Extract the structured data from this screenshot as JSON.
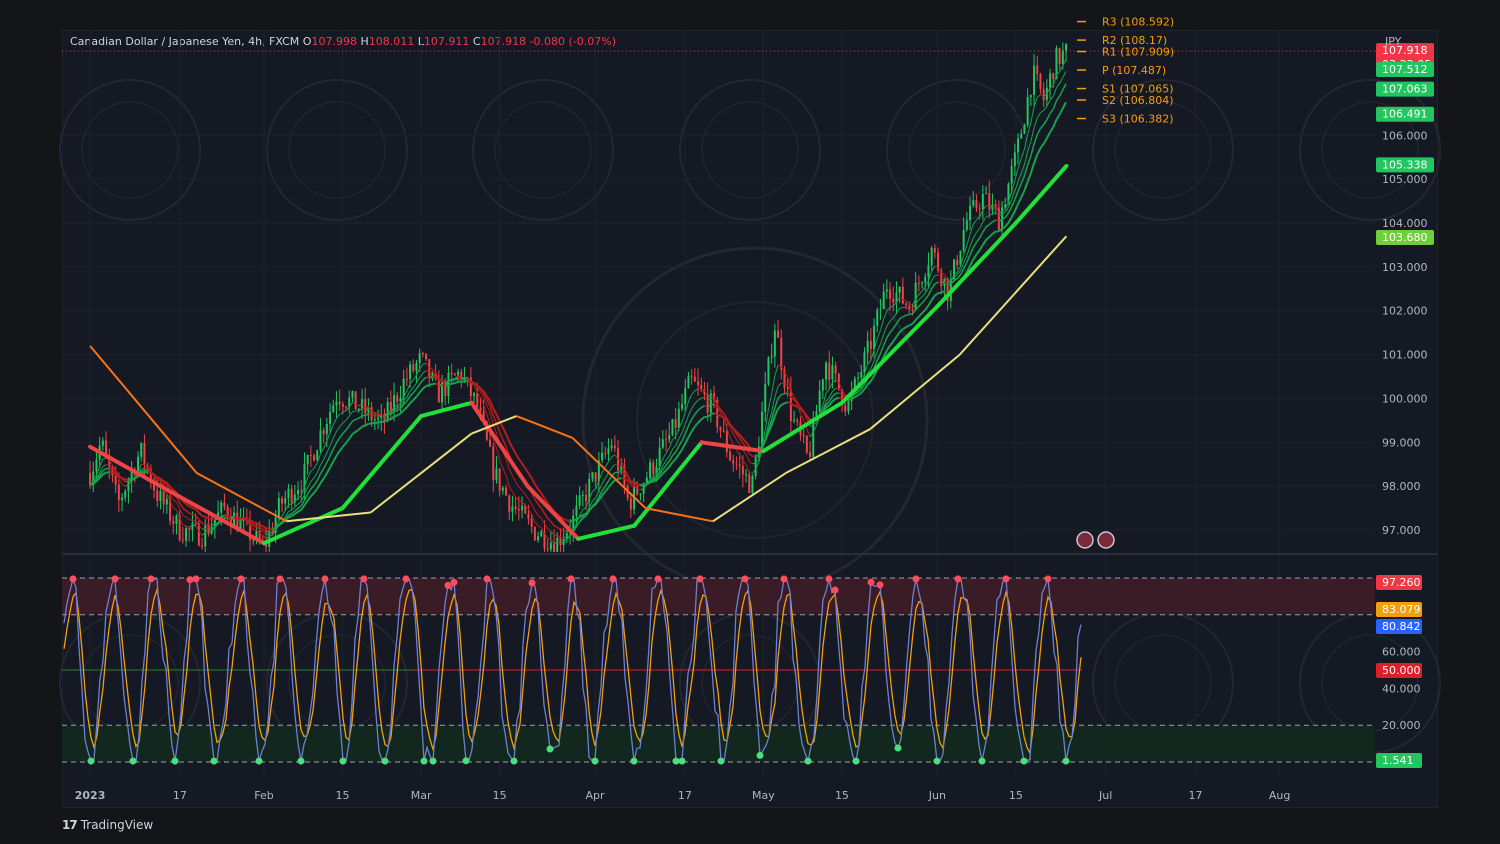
{
  "header": {
    "symbol": "Canadian Dollar / Japanese Yen, 4h, FXCM",
    "open_label": "O",
    "open": "107.998",
    "high_label": "H",
    "high": "108.011",
    "low_label": "L",
    "low": "107.911",
    "close_label": "C",
    "close": "107.918",
    "change": "-0.080 (-0.07%)"
  },
  "currency": "JPY",
  "brand": "TradingView",
  "colors": {
    "up": "#22c55e",
    "down": "#ef4444",
    "ema_slow": "#fdba74",
    "ema_fast": "#22e03a",
    "stoch_k": "#6d7fd1",
    "stoch_d": "#f59e0b"
  },
  "chart_data": [
    {
      "type": "candlestick",
      "title": "",
      "series_name": "CADJPY",
      "y_ticks": [
        97,
        98,
        99,
        100,
        101,
        102,
        103,
        104,
        105,
        106
      ],
      "y_tick_labels": [
        "97.000",
        "98.000",
        "99.000",
        "100.000",
        "101.000",
        "102.000",
        "103.000",
        "104.000",
        "105.000",
        "106.000"
      ],
      "ylim": [
        96.5,
        108.4
      ],
      "x_ticks": [
        "2023",
        "17",
        "Feb",
        "15",
        "Mar",
        "15",
        "Apr",
        "17",
        "May",
        "15",
        "Jun",
        "15",
        "Jul",
        "17",
        "Aug"
      ],
      "price_path": [
        {
          "x": "2023-01-01",
          "y": 98.3
        },
        {
          "x": "2023-01-03",
          "y": 99.0
        },
        {
          "x": "2023-01-06",
          "y": 97.6
        },
        {
          "x": "2023-01-10",
          "y": 98.8
        },
        {
          "x": "2023-01-13",
          "y": 97.8
        },
        {
          "x": "2023-01-17",
          "y": 97.0
        },
        {
          "x": "2023-01-21",
          "y": 96.9
        },
        {
          "x": "2023-01-25",
          "y": 97.5
        },
        {
          "x": "2023-01-28",
          "y": 97.1
        },
        {
          "x": "2023-02-01",
          "y": 96.6
        },
        {
          "x": "2023-02-04",
          "y": 97.6
        },
        {
          "x": "2023-02-08",
          "y": 98.2
        },
        {
          "x": "2023-02-11",
          "y": 99.2
        },
        {
          "x": "2023-02-14",
          "y": 100.1
        },
        {
          "x": "2023-02-18",
          "y": 99.8
        },
        {
          "x": "2023-02-22",
          "y": 99.4
        },
        {
          "x": "2023-02-26",
          "y": 100.4
        },
        {
          "x": "2023-03-01",
          "y": 100.9
        },
        {
          "x": "2023-03-04",
          "y": 100.1
        },
        {
          "x": "2023-03-08",
          "y": 100.6
        },
        {
          "x": "2023-03-11",
          "y": 99.8
        },
        {
          "x": "2023-03-14",
          "y": 98.3
        },
        {
          "x": "2023-03-17",
          "y": 97.6
        },
        {
          "x": "2023-03-21",
          "y": 97.0
        },
        {
          "x": "2023-03-25",
          "y": 96.7
        },
        {
          "x": "2023-03-28",
          "y": 97.2
        },
        {
          "x": "2023-03-31",
          "y": 98.0
        },
        {
          "x": "2023-04-04",
          "y": 99.0
        },
        {
          "x": "2023-04-07",
          "y": 97.6
        },
        {
          "x": "2023-04-11",
          "y": 98.4
        },
        {
          "x": "2023-04-15",
          "y": 99.3
        },
        {
          "x": "2023-04-18",
          "y": 100.4
        },
        {
          "x": "2023-04-22",
          "y": 99.8
        },
        {
          "x": "2023-04-25",
          "y": 98.7
        },
        {
          "x": "2023-04-29",
          "y": 98.0
        },
        {
          "x": "2023-05-03",
          "y": 101.7
        },
        {
          "x": "2023-05-06",
          "y": 99.6
        },
        {
          "x": "2023-05-09",
          "y": 98.6
        },
        {
          "x": "2023-05-12",
          "y": 100.9
        },
        {
          "x": "2023-05-16",
          "y": 99.8
        },
        {
          "x": "2023-05-20",
          "y": 101.2
        },
        {
          "x": "2023-05-23",
          "y": 102.6
        },
        {
          "x": "2023-05-27",
          "y": 102.1
        },
        {
          "x": "2023-05-31",
          "y": 103.4
        },
        {
          "x": "2023-06-03",
          "y": 102.4
        },
        {
          "x": "2023-06-06",
          "y": 104.0
        },
        {
          "x": "2023-06-09",
          "y": 104.6
        },
        {
          "x": "2023-06-12",
          "y": 104.1
        },
        {
          "x": "2023-06-15",
          "y": 105.5
        },
        {
          "x": "2023-06-18",
          "y": 107.4
        },
        {
          "x": "2023-06-20",
          "y": 106.8
        },
        {
          "x": "2023-06-22",
          "y": 107.7
        },
        {
          "x": "2023-06-24",
          "y": 107.9
        }
      ],
      "emas": [
        {
          "name": "",
          "color": "#ef4444",
          "points": [
            {
              "x": "2023-01-01",
              "y": 98.9
            },
            {
              "x": "2023-01-15",
              "y": 97.9
            },
            {
              "x": "2023-02-01",
              "y": 96.7
            },
            {
              "x": "2023-02-15",
              "y": 97.5
            },
            {
              "x": "2023-03-01",
              "y": 99.6
            },
            {
              "x": "2023-03-10",
              "y": 99.9
            },
            {
              "x": "2023-03-20",
              "y": 98.0
            },
            {
              "x": "2023-03-29",
              "y": 96.8
            },
            {
              "x": "2023-04-08",
              "y": 97.1
            },
            {
              "x": "2023-04-20",
              "y": 99.0
            },
            {
              "x": "2023-05-01",
              "y": 98.8
            },
            {
              "x": "2023-05-15",
              "y": 99.9
            },
            {
              "x": "2023-06-01",
              "y": 102.1
            },
            {
              "x": "2023-06-15",
              "y": 104.0
            },
            {
              "x": "2023-06-24",
              "y": 105.3
            }
          ]
        },
        {
          "name": "",
          "color": "#fdba74",
          "points": [
            {
              "x": "2023-01-01",
              "y": 101.2
            },
            {
              "x": "2023-01-20",
              "y": 98.3
            },
            {
              "x": "2023-02-05",
              "y": 97.2
            },
            {
              "x": "2023-02-20",
              "y": 97.4
            },
            {
              "x": "2023-03-10",
              "y": 99.2
            },
            {
              "x": "2023-03-18",
              "y": 99.6
            },
            {
              "x": "2023-03-28",
              "y": 99.1
            },
            {
              "x": "2023-04-10",
              "y": 97.5
            },
            {
              "x": "2023-04-22",
              "y": 97.2
            },
            {
              "x": "2023-05-05",
              "y": 98.3
            },
            {
              "x": "2023-05-20",
              "y": 99.3
            },
            {
              "x": "2023-06-05",
              "y": 101.0
            },
            {
              "x": "2023-06-24",
              "y": 103.7
            }
          ]
        }
      ],
      "pivots": [
        {
          "label": "R3 (108.592)",
          "value": 108.592
        },
        {
          "label": "R2 (108.17)",
          "value": 108.17
        },
        {
          "label": "R1 (107.909)",
          "value": 107.909
        },
        {
          "label": "P (107.487)",
          "value": 107.487
        },
        {
          "label": "S1 (107.065)",
          "value": 107.065
        },
        {
          "label": "S2 (106.804)",
          "value": 106.804
        },
        {
          "label": "S3 (106.382)",
          "value": 106.382
        }
      ],
      "price_tags": [
        {
          "text": "107.918",
          "sub": "03:22:05",
          "value": 107.918,
          "color": "#f23645"
        },
        {
          "text": "107.512",
          "value": 107.512,
          "color": "#22c55e"
        },
        {
          "text": "107.063",
          "value": 107.063,
          "color": "#22c55e"
        },
        {
          "text": "106.491",
          "value": 106.491,
          "color": "#22c55e"
        },
        {
          "text": "105.338",
          "value": 105.338,
          "color": "#22c55e"
        },
        {
          "text": "103.680",
          "value": 103.68,
          "color": "#6fcf3a"
        }
      ]
    },
    {
      "type": "line",
      "title": "",
      "y_ticks": [
        20,
        40,
        60
      ],
      "y_tick_labels": [
        "20.000",
        "40.000",
        "60.000"
      ],
      "ylim": [
        0,
        100
      ],
      "overbought": 80,
      "oversold": 20,
      "midline": 50,
      "series": [
        {
          "name": "",
          "color": "#6d7fd1",
          "last": 80.842
        },
        {
          "name": "",
          "color": "#f59e0b",
          "last": 83.079
        }
      ],
      "value_tags": [
        {
          "text": "97.260",
          "value": 97.26,
          "color": "#f23645"
        },
        {
          "text": "83.079",
          "value": 83.079,
          "color": "#f59e0b"
        },
        {
          "text": "80.842",
          "value": 80.842,
          "color": "#2962ff"
        },
        {
          "text": "50.000",
          "value": 50.0,
          "color": "#e11d2a"
        },
        {
          "text": "1.541",
          "value": 1.541,
          "color": "#22c55e"
        }
      ]
    }
  ]
}
